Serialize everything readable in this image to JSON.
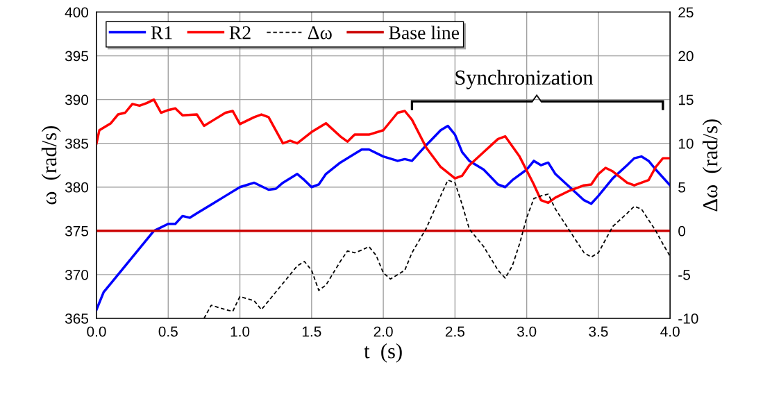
{
  "chart_data": {
    "type": "line",
    "xlabel": "t  (s)",
    "ylabel": "ω  (rad/s)",
    "y2label": "Δω  (rad/s)",
    "xlim": [
      0,
      4
    ],
    "ylim": [
      365,
      400
    ],
    "y2lim": [
      -10,
      25
    ],
    "xticks": [
      {
        "value": 0,
        "label": "0.0"
      },
      {
        "value": 0.5,
        "label": "0.5"
      },
      {
        "value": 1,
        "label": "1.0"
      },
      {
        "value": 1.5,
        "label": "1.5"
      },
      {
        "value": 2,
        "label": "2.0"
      },
      {
        "value": 2.5,
        "label": "2.5"
      },
      {
        "value": 3,
        "label": "3.0"
      },
      {
        "value": 3.5,
        "label": "3.5"
      },
      {
        "value": 4,
        "label": "4.0"
      }
    ],
    "yticks": [
      365,
      370,
      375,
      380,
      385,
      390,
      395,
      400
    ],
    "y2ticks": [
      -10,
      -5,
      0,
      5,
      10,
      15,
      20,
      25
    ],
    "grid": true,
    "legend": "top left",
    "annotations": [
      "Synchronization"
    ],
    "series": [
      {
        "name": "R1",
        "color": "#0000ff",
        "line_style": "solid",
        "x": [
          0,
          0.05,
          0.1,
          0.2,
          0.3,
          0.4,
          0.5,
          0.55,
          0.6,
          0.65,
          0.7,
          0.8,
          0.9,
          1.0,
          1.1,
          1.2,
          1.25,
          1.3,
          1.4,
          1.45,
          1.5,
          1.55,
          1.6,
          1.7,
          1.8,
          1.85,
          1.9,
          2.0,
          2.1,
          2.15,
          2.2,
          2.3,
          2.4,
          2.45,
          2.5,
          2.55,
          2.6,
          2.7,
          2.8,
          2.85,
          2.9,
          3.0,
          3.05,
          3.1,
          3.15,
          3.2,
          3.3,
          3.4,
          3.45,
          3.5,
          3.6,
          3.7,
          3.75,
          3.8,
          3.85,
          3.9,
          4.0
        ],
        "values": [
          366,
          368,
          369,
          371,
          373,
          375,
          375.8,
          375.8,
          376.7,
          376.5,
          377,
          378,
          379,
          380,
          380.5,
          379.7,
          379.8,
          380.5,
          381.5,
          380.8,
          380,
          380.3,
          381.5,
          382.8,
          383.8,
          384.3,
          384.3,
          383.5,
          383,
          383.2,
          383,
          384.8,
          386.5,
          387,
          386,
          384,
          383,
          382,
          380.3,
          380,
          380.8,
          382,
          383,
          382.5,
          382.8,
          381.5,
          380,
          378.5,
          378.1,
          379,
          381,
          382.5,
          383.3,
          383.5,
          383,
          382,
          380.2
        ]
      },
      {
        "name": "R2",
        "color": "#ff0000",
        "line_style": "solid",
        "x": [
          0,
          0.02,
          0.1,
          0.15,
          0.2,
          0.25,
          0.3,
          0.35,
          0.4,
          0.45,
          0.5,
          0.55,
          0.6,
          0.7,
          0.75,
          0.8,
          0.9,
          0.95,
          1.0,
          1.1,
          1.15,
          1.2,
          1.3,
          1.35,
          1.4,
          1.5,
          1.6,
          1.7,
          1.75,
          1.8,
          1.9,
          2.0,
          2.1,
          2.15,
          2.2,
          2.3,
          2.4,
          2.5,
          2.55,
          2.6,
          2.7,
          2.8,
          2.85,
          2.95,
          3.05,
          3.1,
          3.15,
          3.2,
          3.3,
          3.4,
          3.45,
          3.5,
          3.55,
          3.6,
          3.7,
          3.75,
          3.85,
          3.9,
          3.95,
          4.0
        ],
        "values": [
          385,
          386.5,
          387.3,
          388.3,
          388.5,
          389.5,
          389.3,
          389.6,
          390,
          388.5,
          388.8,
          389,
          388.2,
          388.3,
          387,
          387.5,
          388.5,
          388.7,
          387.2,
          388,
          388.3,
          388,
          385,
          385.3,
          385,
          386.3,
          387.3,
          385.8,
          385.2,
          386,
          386,
          386.5,
          388.5,
          388.7,
          387.7,
          384.5,
          382.3,
          381,
          381.3,
          382.5,
          384,
          385.5,
          385.8,
          383.5,
          380.3,
          378.5,
          378.2,
          378.8,
          379.6,
          380.2,
          380.3,
          381.5,
          382.2,
          381.8,
          380.5,
          380.2,
          380.8,
          382.3,
          383.3,
          383.3
        ]
      },
      {
        "name": "Δω",
        "color": "#000000",
        "line_style": "dashed",
        "axis": "y2",
        "x": [
          0.75,
          0.8,
          0.9,
          0.95,
          1.0,
          1.1,
          1.15,
          1.2,
          1.3,
          1.4,
          1.45,
          1.5,
          1.55,
          1.6,
          1.7,
          1.75,
          1.8,
          1.85,
          1.9,
          1.95,
          2.0,
          2.05,
          2.1,
          2.15,
          2.2,
          2.3,
          2.4,
          2.45,
          2.5,
          2.55,
          2.6,
          2.7,
          2.8,
          2.85,
          2.9,
          2.95,
          3.0,
          3.05,
          3.1,
          3.15,
          3.2,
          3.3,
          3.4,
          3.45,
          3.5,
          3.6,
          3.7,
          3.75,
          3.8,
          3.9,
          3.95,
          4.0
        ],
        "values": [
          -10,
          -8.5,
          -9,
          -9.2,
          -7.5,
          -8,
          -9,
          -8,
          -6,
          -4,
          -3.5,
          -4.5,
          -6.8,
          -6.2,
          -3.5,
          -2.3,
          -2.5,
          -2.2,
          -1.8,
          -2.8,
          -4.8,
          -5.5,
          -5,
          -4.5,
          -2.5,
          0.3,
          4,
          5.8,
          5.5,
          3,
          0.2,
          -1.8,
          -4.5,
          -5.4,
          -4,
          -1.5,
          1.5,
          3.7,
          4,
          4.2,
          2.5,
          0,
          -2.5,
          -3,
          -2.5,
          0.5,
          2,
          2.8,
          2.5,
          0,
          -1.5,
          -2.9
        ]
      },
      {
        "name": "Base line",
        "color": "#cc0000",
        "line_style": "solid",
        "x": [
          0,
          4
        ],
        "values": [
          375,
          375
        ]
      }
    ]
  }
}
